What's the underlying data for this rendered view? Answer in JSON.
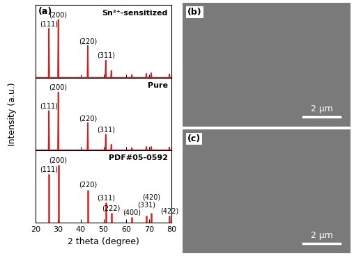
{
  "chart_data": [
    {
      "type": "line",
      "title": "Sn²⁺-sensitized",
      "color": "#e31a1c",
      "x": [
        25.96,
        30.07,
        43.06,
        50.97,
        53.41,
        62.48,
        68.86,
        71.0,
        79.0
      ],
      "values": [
        85,
        100,
        55,
        30,
        12,
        5,
        7,
        8,
        6
      ],
      "annotations": [
        {
          "text": "(111)",
          "x": 25.96
        },
        {
          "text": "(200)",
          "x": 30.07
        },
        {
          "text": "(220)",
          "x": 43.06
        },
        {
          "text": "(311)",
          "x": 50.97
        }
      ],
      "xlim": [
        20,
        80
      ],
      "xticks": [
        20,
        30,
        40,
        50,
        60,
        70,
        80
      ],
      "ylim": [
        0,
        125
      ],
      "yticks": [],
      "tick_labels": false
    },
    {
      "type": "line",
      "title": "Pure",
      "color": "#e31a1c",
      "x": [
        25.96,
        30.07,
        43.06,
        50.97,
        53.41,
        62.48,
        68.86,
        71.0,
        79.0
      ],
      "values": [
        68,
        100,
        47,
        27,
        10,
        4,
        6,
        6,
        5
      ],
      "annotations": [
        {
          "text": "(111)",
          "x": 25.96
        },
        {
          "text": "(200)",
          "x": 30.07
        },
        {
          "text": "(220)",
          "x": 43.06
        },
        {
          "text": "(311)",
          "x": 50.97
        }
      ],
      "xlim": [
        20,
        80
      ],
      "xticks": [
        20,
        30,
        40,
        50,
        60,
        70,
        80
      ],
      "ylim": [
        0,
        125
      ],
      "yticks": [],
      "tick_labels": false
    },
    {
      "type": "stem",
      "title": "PDF#05-0592",
      "color": "#e31a1c",
      "x_label": "2 theta (degree)",
      "x": [
        25.96,
        30.07,
        43.06,
        50.97,
        53.41,
        62.48,
        68.86,
        71.0,
        79.0
      ],
      "values": [
        84,
        100,
        57,
        35,
        17,
        10,
        12,
        17,
        12
      ],
      "annotations": [
        {
          "text": "(111)",
          "x": 25.96
        },
        {
          "text": "(200)",
          "x": 30.07
        },
        {
          "text": "(220)",
          "x": 43.06
        },
        {
          "text": "(311)",
          "x": 50.97
        },
        {
          "text": "(222)",
          "x": 53.41
        },
        {
          "text": "(400)",
          "x": 62.48
        },
        {
          "text": "(331)",
          "x": 68.86
        },
        {
          "text": "(420)",
          "x": 71.0
        },
        {
          "text": "(422)",
          "x": 79.0
        }
      ],
      "xlim": [
        20,
        80
      ],
      "xticks": [
        20,
        30,
        40,
        50,
        60,
        70,
        80
      ],
      "ylim": [
        0,
        125
      ],
      "yticks": [],
      "tick_labels": "x"
    }
  ],
  "y_label": "Intensity (a.u.)",
  "panel_label": "(a)",
  "images": [
    {
      "label": "(b)",
      "scale_bar": "2 μm"
    },
    {
      "label": "(c)",
      "scale_bar": "2 μm"
    }
  ]
}
